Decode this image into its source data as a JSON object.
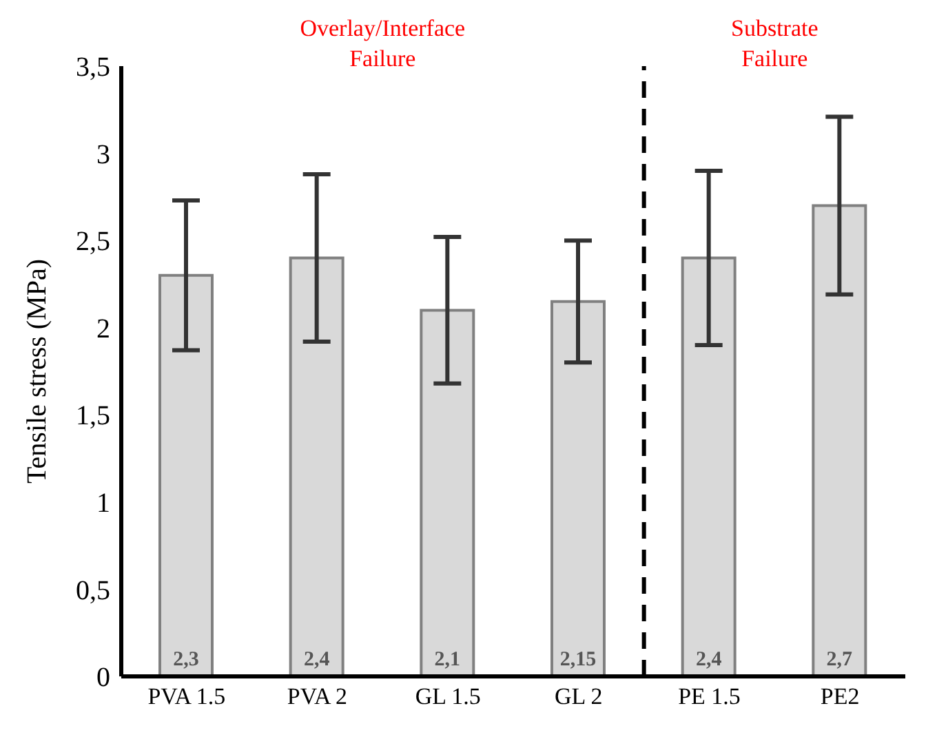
{
  "chart_data": {
    "type": "bar",
    "ylabel": "Tensile stress (MPa)",
    "categories": [
      "PVA 1.5",
      "PVA 2",
      "GL 1.5",
      "GL 2",
      "PE 1.5",
      "PE2"
    ],
    "values": [
      2.3,
      2.4,
      2.1,
      2.15,
      2.4,
      2.7
    ],
    "errors": [
      0.43,
      0.48,
      0.42,
      0.35,
      0.5,
      0.51
    ],
    "value_labels": [
      "2,3",
      "2,4",
      "2,1",
      "2,15",
      "2,4",
      "2,7"
    ],
    "color": "#d9d9d9",
    "ylim": [
      0,
      3.5
    ],
    "yticks": [
      0,
      {
        "value": 0.5,
        "label": "0,5"
      },
      1,
      {
        "value": 1.5,
        "label": "1,5"
      },
      2,
      {
        "value": 2.5,
        "label": "2,5"
      },
      3,
      {
        "value": 3.5,
        "label": "3,5"
      }
    ],
    "annotations": [
      "Overlay/Interface\nFailure",
      "Substrate\nFailure"
    ],
    "grid": false,
    "legend": false
  }
}
